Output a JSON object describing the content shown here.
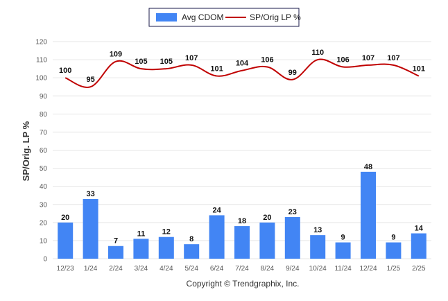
{
  "chart_data": {
    "type": "bar",
    "categories": [
      "12/23",
      "1/24",
      "2/24",
      "3/24",
      "4/24",
      "5/24",
      "6/24",
      "7/24",
      "8/24",
      "9/24",
      "10/24",
      "11/24",
      "12/24",
      "1/25",
      "2/25"
    ],
    "series": [
      {
        "name": "Avg CDOM",
        "type": "bar",
        "color": "#4285f4",
        "values": [
          20,
          33,
          7,
          11,
          12,
          8,
          24,
          18,
          20,
          23,
          13,
          9,
          48,
          9,
          14
        ]
      },
      {
        "name": "SP/Orig LP %",
        "type": "line",
        "color": "#c00000",
        "values": [
          100,
          95,
          109,
          105,
          105,
          107,
          101,
          104,
          106,
          99,
          110,
          106,
          107,
          107,
          101
        ]
      }
    ],
    "ylabel": "SP/Orig. LP %",
    "xlabel": "",
    "ylim": [
      0,
      120
    ],
    "yticks": [
      0,
      10,
      20,
      30,
      40,
      50,
      60,
      70,
      80,
      90,
      100,
      110,
      120
    ],
    "grid": true,
    "legend_position": "top-center"
  },
  "credit": "Copyright © Trendgraphix, Inc."
}
